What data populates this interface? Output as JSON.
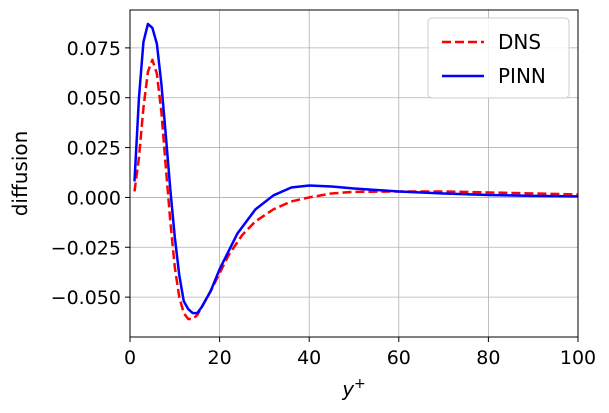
{
  "chart_data": {
    "type": "line",
    "title": "",
    "xlabel_base": "y",
    "xlabel_sup": "+",
    "ylabel": "diffusion",
    "xlim": [
      0,
      100
    ],
    "ylim": [
      -0.07,
      0.094
    ],
    "xticks": [
      0,
      20,
      40,
      60,
      80,
      100
    ],
    "xtick_labels": [
      "0",
      "20",
      "40",
      "60",
      "80",
      "100"
    ],
    "yticks": [
      -0.05,
      -0.025,
      0.0,
      0.025,
      0.05,
      0.075
    ],
    "ytick_labels": [
      "−0.050",
      "−0.025",
      "0.000",
      "0.025",
      "0.050",
      "0.075"
    ],
    "grid": true,
    "legend_position": "top-right",
    "series": [
      {
        "name": "DNS",
        "color": "#ff0000",
        "dash": "dashed",
        "x": [
          1,
          2,
          3,
          4,
          5,
          6,
          7,
          8,
          9,
          10,
          11,
          12,
          13,
          14,
          15,
          16,
          18,
          20,
          22,
          25,
          28,
          32,
          36,
          40,
          45,
          50,
          60,
          70,
          80,
          90,
          100
        ],
        "y": [
          0.003,
          0.02,
          0.045,
          0.063,
          0.069,
          0.062,
          0.043,
          0.015,
          -0.012,
          -0.035,
          -0.05,
          -0.058,
          -0.061,
          -0.061,
          -0.059,
          -0.055,
          -0.047,
          -0.038,
          -0.029,
          -0.019,
          -0.012,
          -0.006,
          -0.002,
          0.0,
          0.002,
          0.0028,
          0.003,
          0.003,
          0.0025,
          0.002,
          0.0015
        ]
      },
      {
        "name": "PINN",
        "color": "#0000ff",
        "dash": "solid",
        "x": [
          1,
          2,
          3,
          4,
          5,
          6,
          7,
          8,
          9,
          10,
          11,
          12,
          13,
          14,
          15,
          16,
          18,
          20,
          24,
          28,
          32,
          36,
          40,
          45,
          50,
          60,
          70,
          80,
          90,
          100
        ],
        "y": [
          0.008,
          0.05,
          0.078,
          0.087,
          0.085,
          0.077,
          0.057,
          0.031,
          0.004,
          -0.02,
          -0.039,
          -0.052,
          -0.056,
          -0.058,
          -0.058,
          -0.055,
          -0.047,
          -0.036,
          -0.018,
          -0.006,
          0.001,
          0.005,
          0.006,
          0.0055,
          0.0045,
          0.003,
          0.002,
          0.0012,
          0.0008,
          0.0005
        ]
      }
    ]
  }
}
